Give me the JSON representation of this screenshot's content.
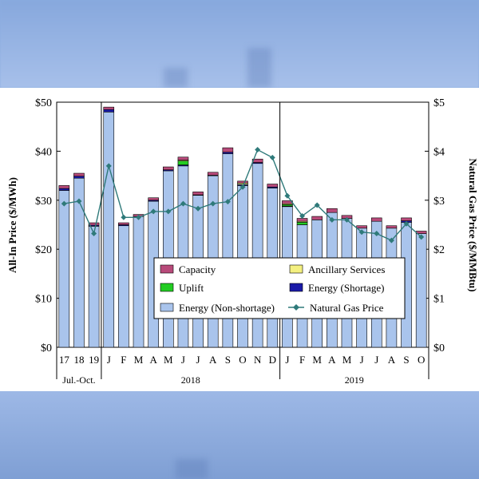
{
  "chart_data": {
    "type": "bar",
    "ylabel": "All-In Price ($/MWh)",
    "y2label": "Natural Gas Price ($/MMBtu)",
    "ylim": [
      0,
      50
    ],
    "y2lim": [
      0,
      5
    ],
    "yticks": [
      "$0",
      "$10",
      "$20",
      "$30",
      "$40",
      "$50"
    ],
    "y2ticks": [
      "$0",
      "$1",
      "$2",
      "$3",
      "$4",
      "$5"
    ],
    "categories": [
      "17",
      "18",
      "19",
      "J",
      "F",
      "M",
      "A",
      "M",
      "J",
      "J",
      "A",
      "S",
      "O",
      "N",
      "D",
      "J",
      "F",
      "M",
      "A",
      "M",
      "J",
      "J",
      "A",
      "S",
      "O"
    ],
    "groups": [
      {
        "label": "Jul.-Oct.",
        "start": 0,
        "end": 2
      },
      {
        "label": "2018",
        "start": 3,
        "end": 14
      },
      {
        "label": "2019",
        "start": 15,
        "end": 24
      }
    ],
    "grid": false,
    "legend_position": "center-right",
    "series": [
      {
        "name": "Energy (Non-shortage)",
        "color": "#a9c4ec",
        "values": [
          32,
          34.5,
          24.7,
          48,
          24.8,
          26.7,
          29.8,
          36,
          37,
          31,
          35,
          39.5,
          33,
          37.5,
          32.5,
          28.7,
          25,
          26,
          27.5,
          26.3,
          24.3,
          25.7,
          24.3,
          25.5,
          23.2
        ]
      },
      {
        "name": "Energy (Shortage)",
        "color": "#1a1aa8",
        "values": [
          0.4,
          0.4,
          0.2,
          0.5,
          0.2,
          0,
          0.2,
          0.2,
          0.2,
          0.1,
          0.1,
          0.3,
          0.2,
          0.2,
          0.2,
          0.1,
          0,
          0,
          0,
          0,
          0,
          0,
          0,
          0.3,
          0
        ]
      },
      {
        "name": "Uplift",
        "color": "#22cc22",
        "values": [
          0,
          0,
          0,
          0,
          0,
          0,
          0,
          0,
          0.8,
          0,
          0,
          0,
          0,
          0,
          0,
          0.3,
          0.5,
          0,
          0,
          0,
          0,
          0,
          0,
          0,
          0
        ]
      },
      {
        "name": "Ancillary Services",
        "color": "#f4f080",
        "values": [
          0,
          0,
          0,
          0,
          0,
          0,
          0,
          0,
          0.2,
          0,
          0,
          0,
          0.3,
          0,
          0,
          0.2,
          0.2,
          0,
          0,
          0,
          0,
          0,
          0,
          0,
          0
        ]
      },
      {
        "name": "Capacity",
        "color": "#b84a7a",
        "values": [
          0.6,
          0.6,
          0.5,
          0.5,
          0.4,
          0.4,
          0.5,
          0.6,
          0.6,
          0.6,
          0.6,
          0.9,
          0.4,
          0.7,
          0.6,
          0.6,
          0.6,
          0.7,
          0.8,
          0.6,
          0.5,
          0.7,
          0.5,
          0.6,
          0.5
        ]
      }
    ],
    "line_series": {
      "name": "Natural Gas Price",
      "axis": "right",
      "color": "#2f7a7a",
      "values": [
        2.93,
        2.98,
        2.32,
        3.7,
        2.65,
        2.65,
        2.77,
        2.77,
        2.93,
        2.83,
        2.93,
        2.97,
        3.27,
        4.03,
        3.87,
        3.09,
        2.68,
        2.9,
        2.6,
        2.6,
        2.35,
        2.32,
        2.18,
        2.52,
        2.25
      ]
    }
  }
}
